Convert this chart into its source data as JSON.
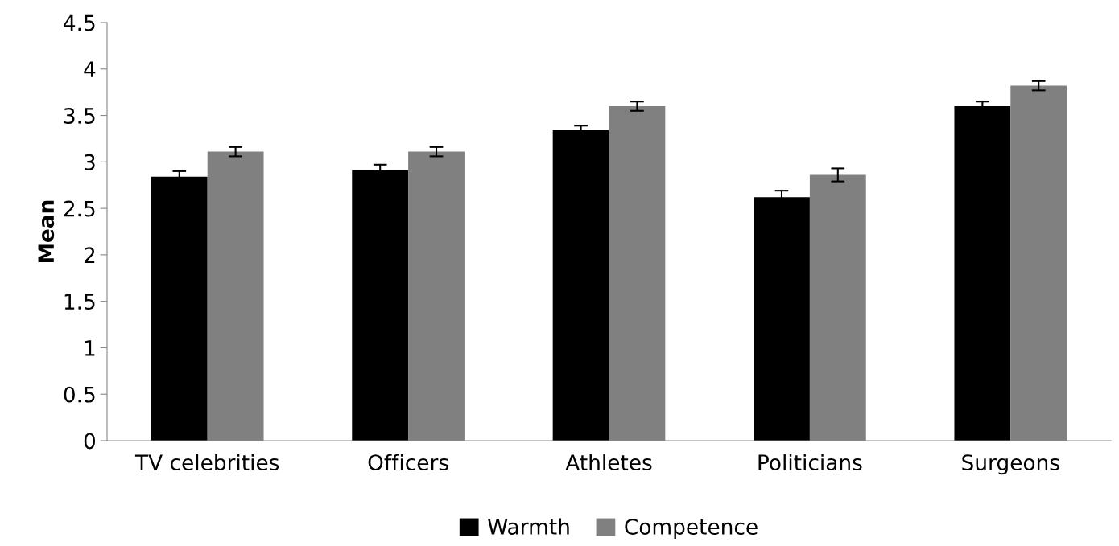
{
  "chart_data": {
    "type": "bar",
    "ylabel": "Mean",
    "categories": [
      "TV celebrities",
      "Officers",
      "Athletes",
      "Politicians",
      "Surgeons"
    ],
    "series": [
      {
        "name": "Warmth",
        "color": "#000000",
        "values": [
          2.84,
          2.91,
          3.34,
          2.62,
          3.6
        ],
        "errors": [
          0.06,
          0.06,
          0.05,
          0.07,
          0.05
        ]
      },
      {
        "name": "Competence",
        "color": "#808080",
        "values": [
          3.11,
          3.11,
          3.6,
          2.86,
          3.82
        ],
        "errors": [
          0.05,
          0.05,
          0.05,
          0.07,
          0.05
        ]
      }
    ],
    "ylim": [
      0,
      4.5
    ],
    "yticks": [
      0,
      0.5,
      1,
      1.5,
      2,
      2.5,
      3,
      3.5,
      4,
      4.5
    ],
    "grid": false,
    "legend": "bottom"
  }
}
